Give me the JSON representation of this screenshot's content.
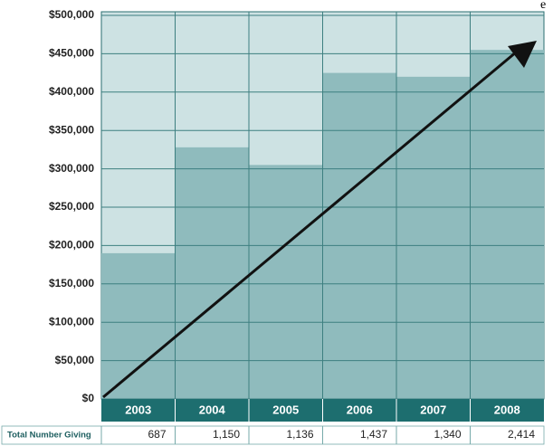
{
  "chart_data": {
    "type": "bar",
    "cropped_text": "e",
    "categories": [
      "2003",
      "2004",
      "2005",
      "2006",
      "2007",
      "2008"
    ],
    "values": [
      190000,
      328000,
      305000,
      425000,
      420000,
      455000
    ],
    "color": "#8fbbbd",
    "background": "#cde2e3",
    "band_color": "#1d6e6f",
    "ylim": [
      0,
      500000
    ],
    "yticks": [
      {
        "value": 0,
        "label": "$0"
      },
      {
        "value": 50000,
        "label": "$50,000"
      },
      {
        "value": 100000,
        "label": "$100,000"
      },
      {
        "value": 150000,
        "label": "$150,000"
      },
      {
        "value": 200000,
        "label": "$200,000"
      },
      {
        "value": 250000,
        "label": "$250,000"
      },
      {
        "value": 300000,
        "label": "$300,000"
      },
      {
        "value": 350000,
        "label": "$350,000"
      },
      {
        "value": 400000,
        "label": "$400,000"
      },
      {
        "value": 450000,
        "label": "$450,000"
      },
      {
        "value": 500000,
        "label": "$500,000"
      }
    ],
    "grid": true,
    "table": {
      "label": "Total Number Giving",
      "values": [
        687,
        1150,
        1136,
        1437,
        1340,
        2414
      ],
      "value_labels": [
        "687",
        "1,150",
        "1,136",
        "1,437",
        "1,340",
        "2,414"
      ]
    }
  }
}
